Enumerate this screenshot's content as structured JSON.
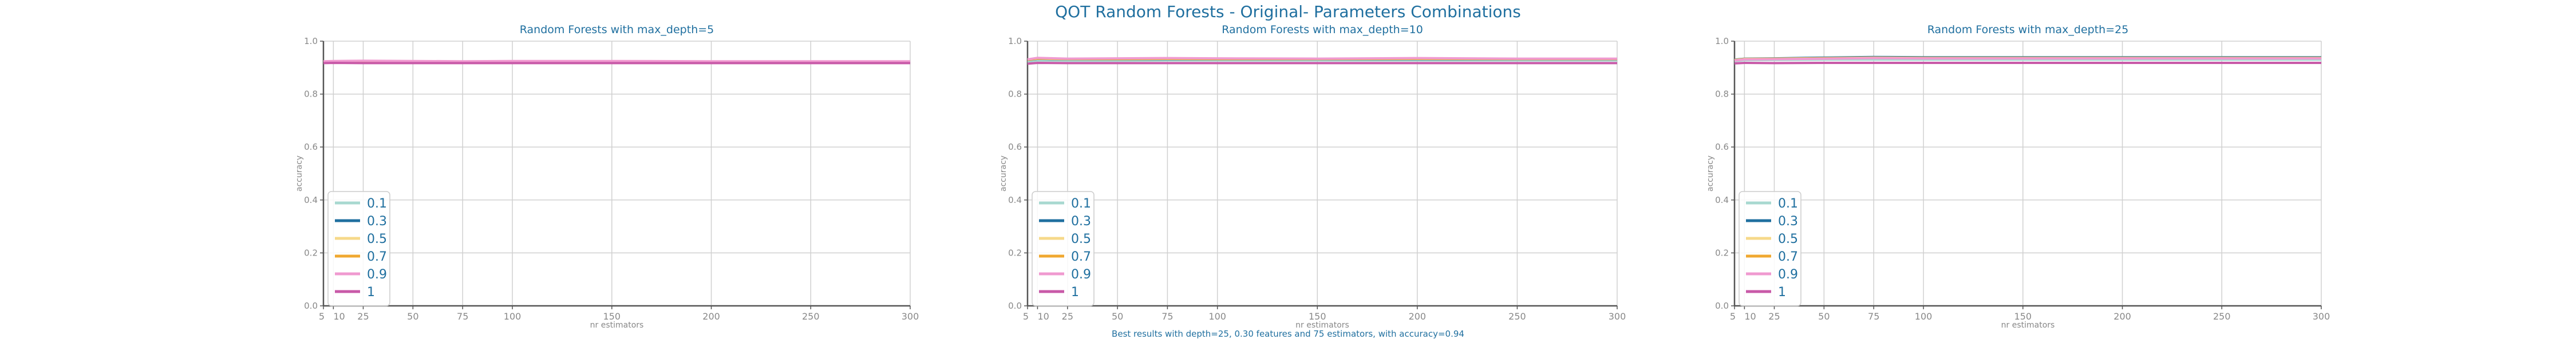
{
  "suptitle": "QOT Random Forests - Original- Parameters Combinations",
  "caption": "Best results with depth=25, 0.30 features and 75 estimators, with accuracy=0.94",
  "colors": {
    "title": "#1f6f9f",
    "axis": "#555555",
    "tick_text": "#888888",
    "grid": "#d0d0d0",
    "legend_text": "#1f6f9f",
    "series": [
      "#a8d8d0",
      "#1f6f9f",
      "#f6d98a",
      "#f0a830",
      "#f09ad0",
      "#c85aa8"
    ]
  },
  "chart_data": [
    {
      "type": "line",
      "title": "Random Forests with max_depth=5",
      "xlabel": "nr estimators",
      "ylabel": "accuracy",
      "x": [
        5,
        10,
        25,
        50,
        75,
        100,
        150,
        200,
        250,
        300
      ],
      "xlim": [
        5,
        300
      ],
      "ylim": [
        0.0,
        1.0
      ],
      "xticks": [
        5,
        10,
        25,
        50,
        75,
        100,
        150,
        200,
        250,
        300
      ],
      "yticks": [
        0.0,
        0.2,
        0.4,
        0.6,
        0.8,
        1.0
      ],
      "grid": true,
      "legend_position": "lower-left",
      "series": [
        {
          "name": "0.1",
          "values": [
            0.92,
            0.92,
            0.921,
            0.92,
            0.92,
            0.92,
            0.92,
            0.92,
            0.92,
            0.92
          ]
        },
        {
          "name": "0.3",
          "values": [
            0.921,
            0.922,
            0.922,
            0.921,
            0.921,
            0.922,
            0.922,
            0.921,
            0.921,
            0.921
          ]
        },
        {
          "name": "0.5",
          "values": [
            0.922,
            0.923,
            0.923,
            0.922,
            0.922,
            0.923,
            0.922,
            0.922,
            0.922,
            0.922
          ]
        },
        {
          "name": "0.7",
          "values": [
            0.923,
            0.924,
            0.924,
            0.923,
            0.923,
            0.923,
            0.923,
            0.923,
            0.923,
            0.923
          ]
        },
        {
          "name": "0.9",
          "values": [
            0.924,
            0.925,
            0.926,
            0.925,
            0.924,
            0.925,
            0.925,
            0.924,
            0.924,
            0.924
          ]
        },
        {
          "name": "1",
          "values": [
            0.917,
            0.918,
            0.917,
            0.917,
            0.917,
            0.917,
            0.917,
            0.917,
            0.917,
            0.917
          ]
        }
      ]
    },
    {
      "type": "line",
      "title": "Random Forests with max_depth=10",
      "xlabel": "nr estimators",
      "ylabel": "accuracy",
      "x": [
        5,
        10,
        25,
        50,
        75,
        100,
        150,
        200,
        250,
        300
      ],
      "xlim": [
        5,
        300
      ],
      "ylim": [
        0.0,
        1.0
      ],
      "xticks": [
        5,
        10,
        25,
        50,
        75,
        100,
        150,
        200,
        250,
        300
      ],
      "yticks": [
        0.0,
        0.2,
        0.4,
        0.6,
        0.8,
        1.0
      ],
      "grid": true,
      "legend_position": "lower-left",
      "series": [
        {
          "name": "0.1",
          "values": [
            0.922,
            0.927,
            0.926,
            0.926,
            0.927,
            0.927,
            0.927,
            0.927,
            0.927,
            0.927
          ]
        },
        {
          "name": "0.3",
          "values": [
            0.928,
            0.933,
            0.931,
            0.931,
            0.932,
            0.931,
            0.931,
            0.932,
            0.931,
            0.931
          ]
        },
        {
          "name": "0.5",
          "values": [
            0.929,
            0.934,
            0.932,
            0.932,
            0.933,
            0.932,
            0.932,
            0.933,
            0.932,
            0.932
          ]
        },
        {
          "name": "0.7",
          "values": [
            0.93,
            0.935,
            0.933,
            0.933,
            0.934,
            0.933,
            0.933,
            0.934,
            0.933,
            0.933
          ]
        },
        {
          "name": "0.9",
          "values": [
            0.931,
            0.937,
            0.934,
            0.935,
            0.936,
            0.935,
            0.934,
            0.936,
            0.934,
            0.934
          ]
        },
        {
          "name": "1",
          "values": [
            0.915,
            0.918,
            0.917,
            0.917,
            0.917,
            0.917,
            0.917,
            0.917,
            0.917,
            0.917
          ]
        }
      ]
    },
    {
      "type": "line",
      "title": "Random Forests with max_depth=25",
      "xlabel": "nr estimators",
      "ylabel": "accuracy",
      "x": [
        5,
        10,
        25,
        50,
        75,
        100,
        150,
        200,
        250,
        300
      ],
      "xlim": [
        5,
        300
      ],
      "ylim": [
        0.0,
        1.0
      ],
      "xticks": [
        5,
        10,
        25,
        50,
        75,
        100,
        150,
        200,
        250,
        300
      ],
      "yticks": [
        0.0,
        0.2,
        0.4,
        0.6,
        0.8,
        1.0
      ],
      "grid": true,
      "legend_position": "lower-left",
      "series": [
        {
          "name": "0.1",
          "values": [
            0.925,
            0.928,
            0.929,
            0.93,
            0.93,
            0.93,
            0.93,
            0.93,
            0.93,
            0.93
          ]
        },
        {
          "name": "0.3",
          "values": [
            0.93,
            0.934,
            0.935,
            0.938,
            0.94,
            0.939,
            0.939,
            0.939,
            0.939,
            0.939
          ]
        },
        {
          "name": "0.5",
          "values": [
            0.929,
            0.933,
            0.934,
            0.936,
            0.938,
            0.937,
            0.937,
            0.937,
            0.937,
            0.937
          ]
        },
        {
          "name": "0.7",
          "values": [
            0.928,
            0.932,
            0.933,
            0.935,
            0.937,
            0.936,
            0.936,
            0.936,
            0.936,
            0.936
          ]
        },
        {
          "name": "0.9",
          "values": [
            0.927,
            0.931,
            0.932,
            0.934,
            0.936,
            0.935,
            0.935,
            0.935,
            0.935,
            0.935
          ]
        },
        {
          "name": "1",
          "values": [
            0.916,
            0.918,
            0.917,
            0.918,
            0.918,
            0.918,
            0.918,
            0.918,
            0.918,
            0.918
          ]
        }
      ]
    }
  ]
}
